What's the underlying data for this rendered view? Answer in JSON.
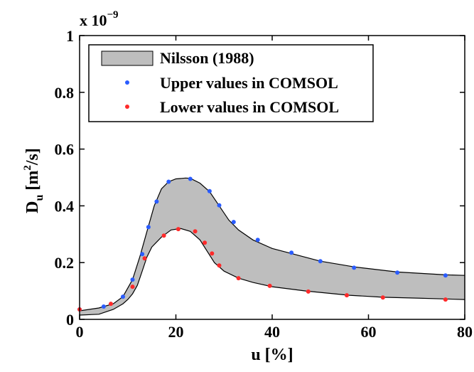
{
  "chart_data": {
    "type": "area",
    "xlabel": "u [%]",
    "ylabel": {
      "base": "D",
      "sub": "u",
      "unit_prefix": " [m",
      "unit_sup": "2",
      "unit_suffix": "/s]"
    },
    "y_multiplier": {
      "prefix": "x 10",
      "exponent": "−9"
    },
    "xlim": [
      0,
      80
    ],
    "ylim": [
      0,
      1
    ],
    "xticks": [
      0,
      20,
      40,
      60,
      80
    ],
    "yticks": [
      0,
      0.2,
      0.4,
      0.6,
      0.8,
      1
    ],
    "ytick_labels": [
      "0",
      "0.2",
      "0.4",
      "0.6",
      "0.8",
      "1"
    ],
    "legend_position": "top-left",
    "band": {
      "name": "Nilsson (1988)",
      "color": "#bebebe",
      "upper": [
        [
          0,
          0.03
        ],
        [
          4,
          0.04
        ],
        [
          7,
          0.055
        ],
        [
          9,
          0.08
        ],
        [
          11,
          0.14
        ],
        [
          12.5,
          0.22
        ],
        [
          14,
          0.31
        ],
        [
          15.5,
          0.4
        ],
        [
          17,
          0.46
        ],
        [
          18.5,
          0.485
        ],
        [
          20,
          0.495
        ],
        [
          22,
          0.498
        ],
        [
          23,
          0.497
        ],
        [
          25,
          0.48
        ],
        [
          27,
          0.45
        ],
        [
          29,
          0.4
        ],
        [
          31,
          0.35
        ],
        [
          33,
          0.315
        ],
        [
          36,
          0.28
        ],
        [
          40,
          0.25
        ],
        [
          44,
          0.232
        ],
        [
          50,
          0.205
        ],
        [
          57,
          0.185
        ],
        [
          66,
          0.167
        ],
        [
          76,
          0.157
        ],
        [
          80,
          0.155
        ]
      ],
      "lower": [
        [
          0,
          0.015
        ],
        [
          4,
          0.018
        ],
        [
          7,
          0.035
        ],
        [
          9,
          0.055
        ],
        [
          10,
          0.07
        ],
        [
          11,
          0.09
        ],
        [
          12,
          0.12
        ],
        [
          13,
          0.17
        ],
        [
          14,
          0.22
        ],
        [
          15,
          0.255
        ],
        [
          17,
          0.29
        ],
        [
          19,
          0.315
        ],
        [
          21,
          0.32
        ],
        [
          23,
          0.31
        ],
        [
          25,
          0.28
        ],
        [
          26.5,
          0.24
        ],
        [
          28,
          0.2
        ],
        [
          30,
          0.17
        ],
        [
          33,
          0.145
        ],
        [
          36,
          0.13
        ],
        [
          40,
          0.115
        ],
        [
          47,
          0.1
        ],
        [
          56,
          0.085
        ],
        [
          63,
          0.078
        ],
        [
          70,
          0.075
        ],
        [
          76,
          0.072
        ],
        [
          80,
          0.07
        ]
      ]
    },
    "series": [
      {
        "name": "Upper values in COMSOL",
        "color": "#2a5cff",
        "x": [
          0,
          5,
          9,
          11,
          13,
          14.3,
          16,
          18.5,
          23,
          27,
          29,
          32,
          37,
          44,
          50,
          57,
          66,
          76
        ],
        "y": [
          0.035,
          0.045,
          0.08,
          0.14,
          0.23,
          0.325,
          0.415,
          0.485,
          0.495,
          0.452,
          0.402,
          0.343,
          0.28,
          0.235,
          0.205,
          0.182,
          0.165,
          0.155
        ]
      },
      {
        "name": "Lower values in COMSOL",
        "color": "#ff2a2a",
        "x": [
          0,
          6.5,
          11,
          13.5,
          17.5,
          20.5,
          24,
          26,
          27.5,
          29,
          33,
          39.5,
          47.5,
          55.5,
          63,
          76
        ],
        "y": [
          0.035,
          0.055,
          0.115,
          0.215,
          0.295,
          0.318,
          0.31,
          0.27,
          0.232,
          0.19,
          0.145,
          0.118,
          0.098,
          0.085,
          0.077,
          0.07
        ]
      }
    ]
  }
}
